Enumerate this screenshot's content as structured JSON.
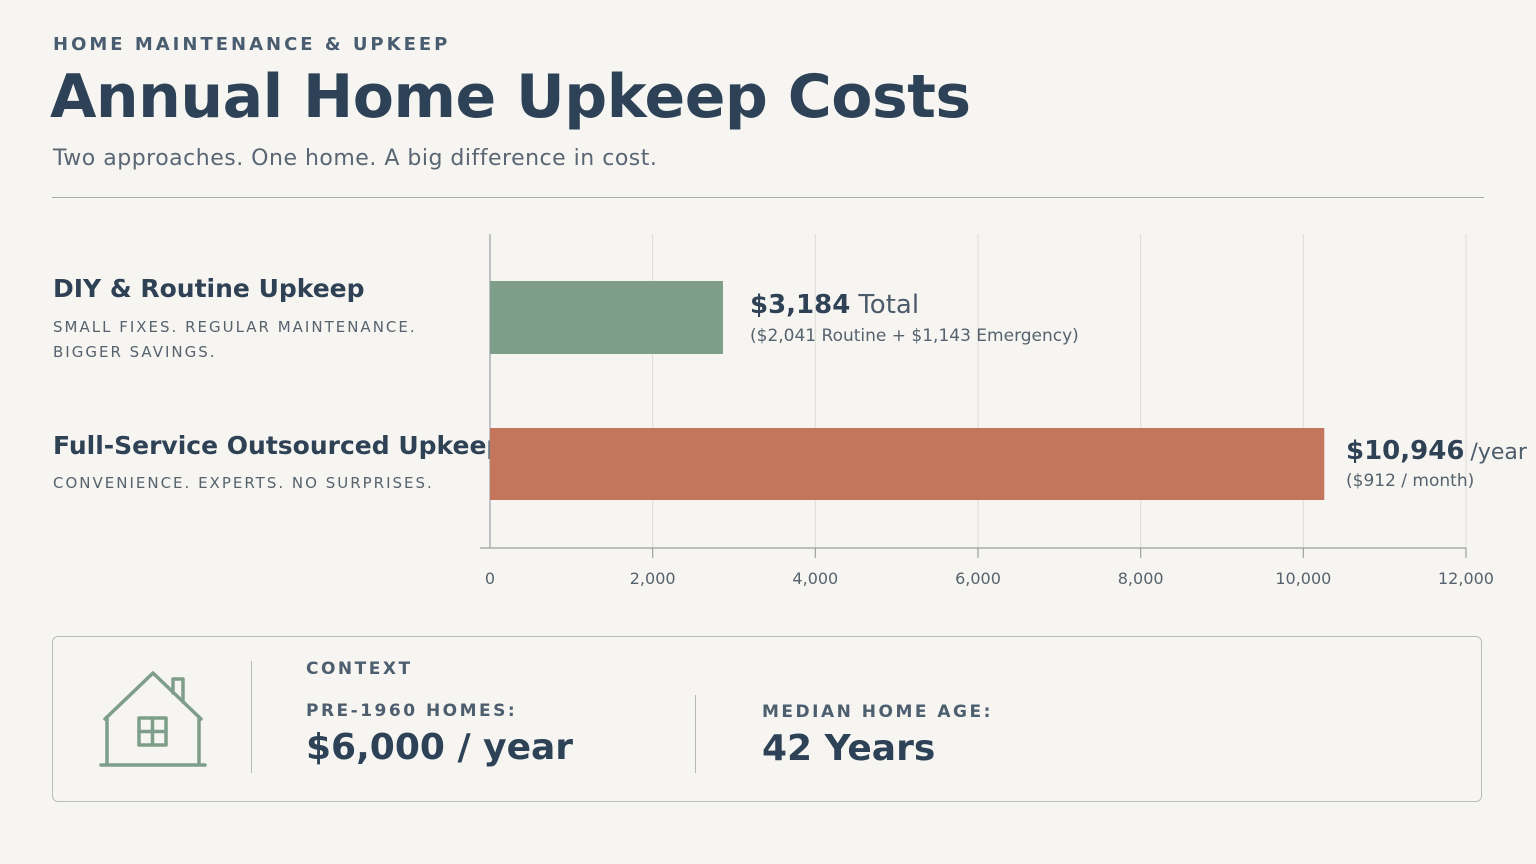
{
  "header": {
    "eyebrow": "HOME MAINTENANCE & UPKEEP",
    "title": "Annual Home Upkeep Costs",
    "subtitle": "Two approaches. One home. A big difference in cost."
  },
  "categories": [
    {
      "name": "DIY & Routine Upkeep",
      "desc_line1": "SMALL FIXES. REGULAR MAINTENANCE.",
      "desc_line2": "BIGGER SAVINGS.",
      "value_label": "$3,184",
      "value_unit": "Total",
      "value_sub": "($2,041 Routine + $1,143 Emergency)"
    },
    {
      "name": "Full-Service Outsourced Upkeep",
      "desc_line1": "CONVENIENCE. EXPERTS. NO SURPRISES.",
      "value_label": "$10,946",
      "value_unit": "/year",
      "value_sub": "($912 / month)"
    }
  ],
  "chart_data": {
    "type": "bar",
    "orientation": "horizontal",
    "categories": [
      "DIY & Routine Upkeep",
      "Full-Service Outsourced Upkeep"
    ],
    "values": [
      3184,
      10946
    ],
    "colors": [
      "#7f9e8a",
      "#c4765d"
    ],
    "xlim": [
      0,
      12000
    ],
    "xticks": [
      0,
      2000,
      4000,
      6000,
      8000,
      10000,
      12000
    ],
    "xtick_labels": [
      "0",
      "2,000",
      "4,000",
      "6,000",
      "8,000",
      "10,000",
      "12,000"
    ],
    "grid": "vertical"
  },
  "context": {
    "heading": "CONTEXT",
    "icon": "house-icon",
    "icon_color": "#7f9e8a",
    "stat1_label": "PRE-1960 HOMES:",
    "stat1_value": "$6,000 / year",
    "stat2_label": "MEDIAN HOME AGE:",
    "stat2_value": "42 Years"
  }
}
